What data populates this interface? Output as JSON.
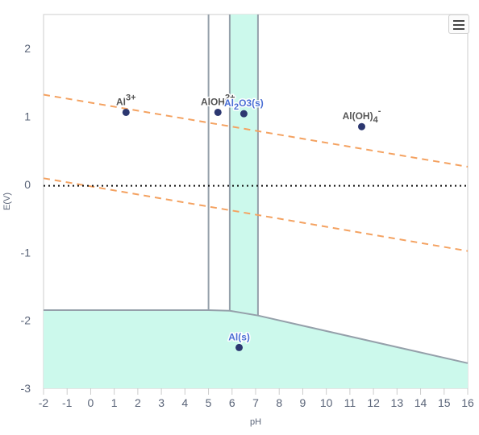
{
  "colors": {
    "region_fill": "#ccf9ec",
    "boundary": "#95a0aa",
    "dashed": "#f4a261",
    "dotted": "#111111",
    "point": "#2c3770",
    "label_dark": "#555555",
    "label_blue": "#4a6fd4",
    "tick": "#5a6478",
    "frame": "#cccccc"
  },
  "menu": {
    "icon": "hamburger-menu-icon"
  },
  "chart_data": {
    "type": "pourbaix-diagram",
    "xlabel": "pH",
    "ylabel": "E(V)",
    "xlim": [
      -2,
      16
    ],
    "ylim": [
      -3,
      2.5
    ],
    "xticks": [
      "-2",
      "-1",
      "0",
      "1",
      "2",
      "3",
      "4",
      "5",
      "6",
      "7",
      "8",
      "9",
      "10",
      "11",
      "12",
      "13",
      "14",
      "15",
      "16"
    ],
    "yticks": [
      "-3",
      "-2",
      "-1",
      "0",
      "1",
      "2"
    ],
    "shaded_regions": [
      {
        "id": "al2o3",
        "points": [
          [
            5.9,
            2.5
          ],
          [
            7.1,
            2.5
          ],
          [
            7.1,
            -1.93
          ],
          [
            5.9,
            -1.86
          ]
        ]
      },
      {
        "id": "al-metal",
        "points": [
          [
            -2,
            -1.85
          ],
          [
            5.0,
            -1.85
          ],
          [
            5.9,
            -1.86
          ],
          [
            7.1,
            -1.93
          ],
          [
            16,
            -2.63
          ],
          [
            16,
            -3
          ],
          [
            -2,
            -3
          ]
        ]
      }
    ],
    "boundaries": [
      {
        "points": [
          [
            5.0,
            2.5
          ],
          [
            5.0,
            -1.85
          ]
        ]
      },
      {
        "points": [
          [
            -2,
            -1.85
          ],
          [
            5.0,
            -1.85
          ],
          [
            5.9,
            -1.86
          ],
          [
            7.1,
            -1.93
          ],
          [
            16,
            -2.63
          ]
        ]
      }
    ],
    "dashed_lines": [
      {
        "name": "O2/H2O",
        "points": [
          [
            -2,
            1.32
          ],
          [
            16,
            0.26
          ]
        ]
      },
      {
        "name": "H+/H2",
        "points": [
          [
            -2,
            0.09
          ],
          [
            16,
            -0.98
          ]
        ]
      }
    ],
    "dotted_lines": [
      {
        "points": [
          [
            -2,
            -0.02
          ],
          [
            16,
            -0.02
          ]
        ]
      }
    ],
    "species": [
      {
        "id": "al3",
        "base": "Al",
        "sup": "3+",
        "sub": "",
        "suffix": "",
        "x": 1.5,
        "y": 1.06,
        "color": "dark"
      },
      {
        "id": "aloh2",
        "base": "AlOH",
        "sup": "2+",
        "sub": "",
        "suffix": "",
        "x": 5.4,
        "y": 1.06,
        "color": "dark"
      },
      {
        "id": "al2o3s",
        "base": "Al",
        "sup": "",
        "sub": "2",
        "suffix": "O3(s)",
        "x": 6.5,
        "y": 1.04,
        "color": "blue"
      },
      {
        "id": "aloh4",
        "base": "Al(OH)",
        "sup": "-",
        "sub": "4",
        "suffix": "",
        "x": 11.5,
        "y": 0.85,
        "color": "dark"
      },
      {
        "id": "als",
        "base": "Al(s)",
        "sup": "",
        "sub": "",
        "suffix": "",
        "x": 6.3,
        "y": -2.4,
        "color": "blue"
      }
    ]
  }
}
